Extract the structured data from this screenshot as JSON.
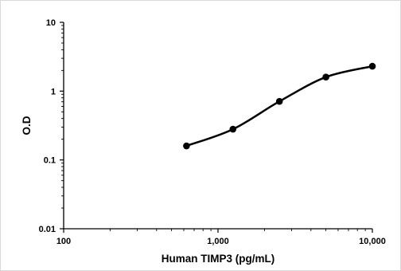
{
  "chart_data": {
    "type": "line",
    "title": "",
    "xlabel": "Human TIMP3 (pg/mL)",
    "ylabel": "O.D",
    "xscale": "log",
    "yscale": "log",
    "xlim": [
      100,
      10000
    ],
    "ylim": [
      0.01,
      10
    ],
    "x_ticks": [
      {
        "value": 100,
        "label": "100"
      },
      {
        "value": 1000,
        "label": "1,000"
      },
      {
        "value": 10000,
        "label": "10,000"
      }
    ],
    "y_ticks": [
      {
        "value": 10,
        "label": "10"
      },
      {
        "value": 1,
        "label": "1"
      },
      {
        "value": 0.1,
        "label": "0.1"
      },
      {
        "value": 0.01,
        "label": "0.01"
      }
    ],
    "grid": false,
    "legend": "none",
    "series": [
      {
        "color": "#000000",
        "marker": "circle",
        "smooth": true,
        "points": [
          {
            "x": 625,
            "y": 0.16
          },
          {
            "x": 1250,
            "y": 0.28
          },
          {
            "x": 2500,
            "y": 0.71
          },
          {
            "x": 5000,
            "y": 1.6
          },
          {
            "x": 10000,
            "y": 2.3
          }
        ]
      }
    ]
  }
}
